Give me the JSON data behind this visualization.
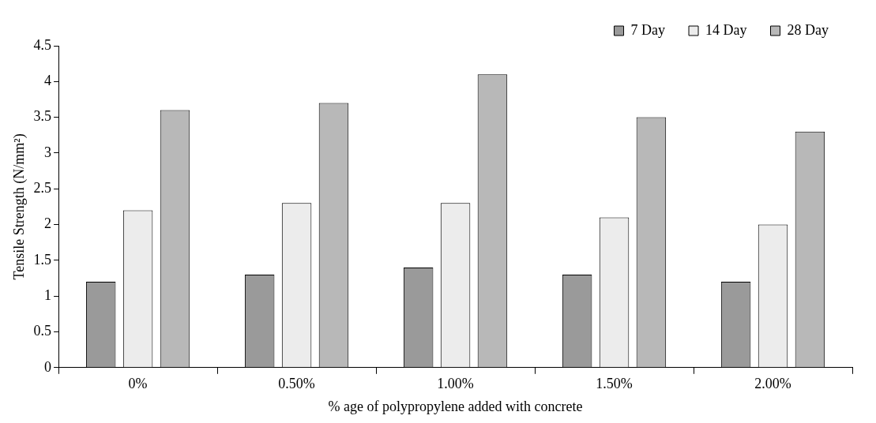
{
  "chart_data": {
    "type": "bar",
    "xlabel": "% age of polypropylene added with concrete",
    "ylabel": "Tensile Strength (N/mm²)",
    "categories": [
      "0%",
      "0.50%",
      "1.00%",
      "1.50%",
      "2.00%"
    ],
    "series": [
      {
        "name": "7 Day",
        "color": "#9a9a9a",
        "values": [
          1.2,
          1.3,
          1.4,
          1.3,
          1.2
        ]
      },
      {
        "name": "14 Day",
        "color": "#ececec",
        "values": [
          2.2,
          2.3,
          2.3,
          2.1,
          2.0
        ]
      },
      {
        "name": "28 Day",
        "color": "#b8b8b8",
        "values": [
          3.6,
          3.7,
          4.1,
          3.5,
          3.3
        ]
      }
    ],
    "ylim": [
      0,
      4.5
    ],
    "yticks": [
      0,
      0.5,
      1,
      1.5,
      2,
      2.5,
      3,
      3.5,
      4,
      4.5
    ],
    "grid": false,
    "legend": "top right"
  }
}
